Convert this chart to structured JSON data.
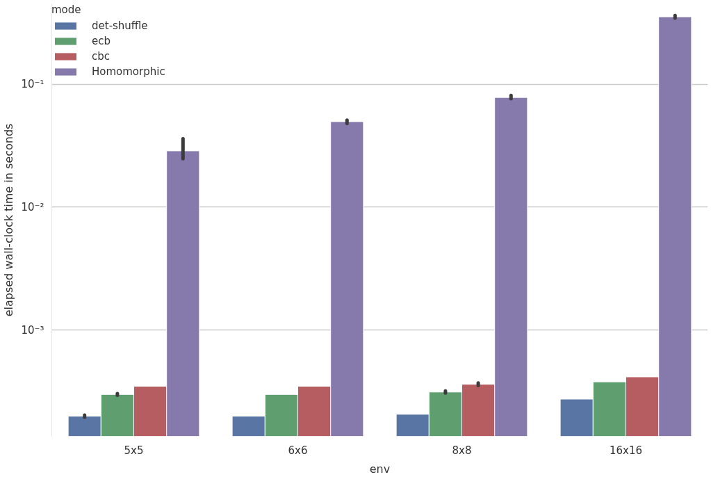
{
  "chart_data": {
    "type": "bar",
    "xlabel": "env",
    "ylabel": "elapsed wall-clock time in seconds",
    "legend_title": "mode",
    "categories": [
      "5x5",
      "6x6",
      "8x8",
      "16x16"
    ],
    "series": [
      {
        "name": "det-shuffle",
        "color": "#5875a4",
        "values": [
          0.0002,
          0.0002,
          0.000207,
          0.000275
        ],
        "errors": [
          [
            0.000196,
            0.000204
          ],
          null,
          null,
          null
        ]
      },
      {
        "name": "ecb",
        "color": "#5f9e6e",
        "values": [
          0.0003,
          0.0003,
          0.000314,
          0.00038
        ],
        "errors": [
          [
            0.000295,
            0.000305
          ],
          null,
          [
            0.000308,
            0.00032
          ],
          null
        ]
      },
      {
        "name": "cbc",
        "color": "#b55d60",
        "values": [
          0.00035,
          0.00035,
          0.000363,
          0.000417
        ],
        "errors": [
          null,
          null,
          [
            0.000355,
            0.000372
          ],
          null
        ]
      },
      {
        "name": "Homomorphic",
        "color": "#857aab",
        "values": [
          0.0287,
          0.0496,
          0.078,
          0.353
        ],
        "errors": [
          [
            0.0248,
            0.036
          ],
          [
            0.048,
            0.051
          ],
          [
            0.076,
            0.081
          ],
          [
            0.345,
            0.362
          ]
        ]
      }
    ],
    "log": "y",
    "ylim": [
      0.000137,
      0.45
    ],
    "yticks": [
      {
        "value": 0.001,
        "label": "10⁻³"
      },
      {
        "value": 0.01,
        "label": "10⁻²"
      },
      {
        "value": 0.1,
        "label": "10⁻¹"
      }
    ],
    "grid": "y",
    "legend": "top left"
  }
}
